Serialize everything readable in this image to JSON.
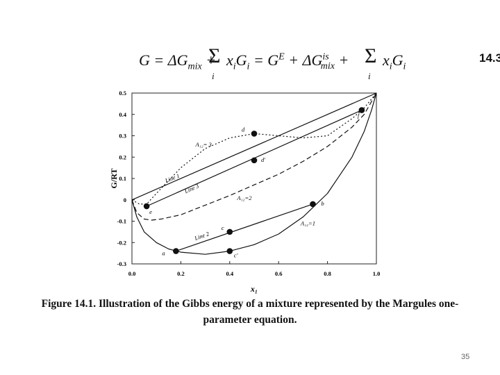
{
  "equation": {
    "text": "G = ΔG_mix + Σ_i x_i G_i = G^E + ΔG_mix^is + Σ_i x_i G_i",
    "number": "14.3"
  },
  "chart_data": {
    "type": "line",
    "xlabel": "x₁",
    "ylabel": "G/RT",
    "xlim": [
      0.0,
      1.0
    ],
    "ylim": [
      -0.3,
      0.5
    ],
    "xticks": [
      "0.0",
      "0.2",
      "0.4",
      "0.6",
      "0.8",
      "1.0"
    ],
    "yticks": [
      "-0.3",
      "-0.2",
      "-0.1",
      "0",
      "0.1",
      "0.2",
      "0.3",
      "0.4",
      "0.5"
    ],
    "grid": false,
    "series": [
      {
        "name": "A₁₂=1",
        "style": "solid",
        "x": [
          0,
          0.02,
          0.05,
          0.1,
          0.15,
          0.2,
          0.3,
          0.4,
          0.5,
          0.6,
          0.7,
          0.8,
          0.9,
          0.95,
          0.98,
          1.0
        ],
        "y": [
          0,
          -0.08,
          -0.15,
          -0.2,
          -0.23,
          -0.245,
          -0.255,
          -0.24,
          -0.21,
          -0.16,
          -0.08,
          0.03,
          0.2,
          0.32,
          0.42,
          0.5
        ]
      },
      {
        "name": "A₁₂=2",
        "style": "dashed",
        "x": [
          0,
          0.02,
          0.05,
          0.08,
          0.12,
          0.2,
          0.3,
          0.4,
          0.5,
          0.6,
          0.7,
          0.8,
          0.9,
          0.95,
          1.0
        ],
        "y": [
          0,
          -0.06,
          -0.09,
          -0.095,
          -0.09,
          -0.07,
          -0.025,
          0.02,
          0.07,
          0.12,
          0.18,
          0.25,
          0.34,
          0.4,
          0.5
        ]
      },
      {
        "name": "A₁₂= 3",
        "style": "dotted",
        "x": [
          0,
          0.03,
          0.06,
          0.1,
          0.15,
          0.2,
          0.3,
          0.4,
          0.5,
          0.6,
          0.7,
          0.8,
          0.9,
          0.95,
          1.0
        ],
        "y": [
          0,
          -0.02,
          -0.02,
          0.03,
          0.09,
          0.15,
          0.24,
          0.29,
          0.31,
          0.3,
          0.29,
          0.3,
          0.38,
          0.43,
          0.5
        ]
      },
      {
        "name": "Line 1",
        "style": "solid",
        "x": [
          0,
          1.0
        ],
        "y": [
          0,
          0.5
        ]
      },
      {
        "name": "Line 2",
        "style": "solid",
        "x": [
          0.18,
          0.74
        ],
        "y": [
          -0.24,
          -0.02
        ]
      },
      {
        "name": "Line 3",
        "style": "solid",
        "x": [
          0.06,
          0.94
        ],
        "y": [
          -0.03,
          0.42
        ]
      }
    ],
    "points": [
      {
        "label": "a",
        "x": 0.18,
        "y": -0.24
      },
      {
        "label": "b",
        "x": 0.74,
        "y": -0.02
      },
      {
        "label": "c",
        "x": 0.4,
        "y": -0.15
      },
      {
        "label": "c'",
        "x": 0.4,
        "y": -0.24
      },
      {
        "label": "d",
        "x": 0.5,
        "y": 0.31
      },
      {
        "label": "d'",
        "x": 0.5,
        "y": 0.185
      },
      {
        "label": "e",
        "x": 0.06,
        "y": -0.03
      },
      {
        "label": "f",
        "x": 0.94,
        "y": 0.42
      }
    ]
  },
  "caption": {
    "line1": "Figure 14.1. Illustration of the Gibbs energy of a mixture represented by the Margules one-",
    "line2": "parameter equation."
  },
  "page_number": "35"
}
